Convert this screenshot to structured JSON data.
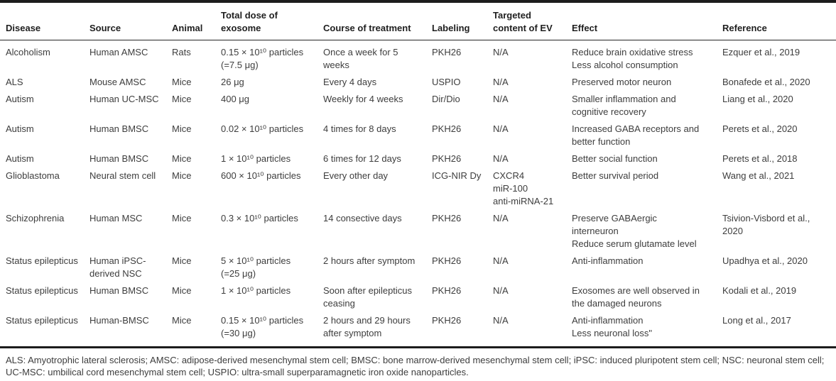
{
  "colors": {
    "background": "#ffffff",
    "body_text": "#3d3d3d",
    "header_text": "#1f1f1f",
    "rule": "#1c1c1c"
  },
  "table": {
    "columns": [
      {
        "key": "disease",
        "label": "Disease"
      },
      {
        "key": "source",
        "label": "Source"
      },
      {
        "key": "animal",
        "label": "Animal"
      },
      {
        "key": "dose",
        "label": "Total dose of\nexosome"
      },
      {
        "key": "course",
        "label": "Course of treatment"
      },
      {
        "key": "labeling",
        "label": "Labeling"
      },
      {
        "key": "targeted_content",
        "label": "Targeted\ncontent of EV"
      },
      {
        "key": "effect",
        "label": "Effect"
      },
      {
        "key": "reference",
        "label": "Reference"
      }
    ],
    "rows": [
      {
        "disease": "Alcoholism",
        "source": "Human AMSC",
        "animal": "Rats",
        "dose": "0.15 × 10¹⁰ particles\n(=7.5 μg)",
        "course": "Once a week for 5\nweeks",
        "labeling": "PKH26",
        "targeted_content": "N/A",
        "effect": "Reduce brain oxidative stress\nLess alcohol consumption",
        "reference": "Ezquer et al., 2019"
      },
      {
        "disease": "ALS",
        "source": "Mouse AMSC",
        "animal": "Mice",
        "dose": "26 μg",
        "course": "Every 4 days",
        "labeling": "USPIO",
        "targeted_content": "N/A",
        "effect": "Preserved motor neuron",
        "reference": "Bonafede et al., 2020"
      },
      {
        "disease": "Autism",
        "source": "Human UC-MSC",
        "animal": "Mice",
        "dose": "400 μg",
        "course": "Weekly for 4 weeks",
        "labeling": "Dir/Dio",
        "targeted_content": "N/A",
        "effect": "Smaller inflammation and\ncognitive recovery",
        "reference": "Liang et al., 2020"
      },
      {
        "disease": "Autism",
        "source": "Human BMSC",
        "animal": "Mice",
        "dose": "0.02 × 10¹⁰ particles",
        "course": "4 times for 8 days",
        "labeling": "PKH26",
        "targeted_content": "N/A",
        "effect": "Increased GABA receptors and\nbetter function",
        "reference": "Perets et al., 2020"
      },
      {
        "disease": "Autism",
        "source": "Human BMSC",
        "animal": "Mice",
        "dose": "1 × 10¹⁰ particles",
        "course": "6 times for 12 days",
        "labeling": "PKH26",
        "targeted_content": "N/A",
        "effect": "Better social function",
        "reference": "Perets et al., 2018"
      },
      {
        "disease": "Glioblastoma",
        "source": "Neural stem cell",
        "animal": "Mice",
        "dose": "600 × 10¹⁰ particles",
        "course": "Every other day",
        "labeling": "ICG-NIR Dy",
        "targeted_content": "CXCR4\nmiR-100\nanti-miRNA-21",
        "effect": "Better survival period",
        "reference": "Wang et al., 2021"
      },
      {
        "disease": "Schizophrenia",
        "source": "Human MSC",
        "animal": "Mice",
        "dose": "0.3 × 10¹⁰ particles",
        "course": "14 consective days",
        "labeling": "PKH26",
        "targeted_content": "N/A",
        "effect": "Preserve GABAergic\ninterneuron\nReduce serum glutamate level",
        "reference": "Tsivion-Visbord et al.,\n2020"
      },
      {
        "disease": "Status epilepticus",
        "source": "Human iPSC-\nderived NSC",
        "animal": "Mice",
        "dose": "5 × 10¹⁰ particles\n(=25 μg)",
        "course": "2 hours after symptom",
        "labeling": "PKH26",
        "targeted_content": "N/A",
        "effect": "Anti-inflammation",
        "reference": "Upadhya et al., 2020"
      },
      {
        "disease": "Status epilepticus",
        "source": "Human BMSC",
        "animal": "Mice",
        "dose": "1 × 10¹⁰ particles",
        "course": "Soon after epilepticus\nceasing",
        "labeling": "PKH26",
        "targeted_content": "N/A",
        "effect": "Exosomes are well observed in\nthe damaged neurons",
        "reference": "Kodali et al., 2019"
      },
      {
        "disease": "Status epilepticus",
        "source": "Human-BMSC",
        "animal": "Mice",
        "dose": "0.15 × 10¹⁰ particles\n(=30 μg)",
        "course": "2 hours and 29 hours\nafter symptom",
        "labeling": "PKH26",
        "targeted_content": "N/A",
        "effect": "Anti-inflammation\nLess neuronal loss\"",
        "reference": "Long et al., 2017"
      }
    ]
  },
  "footnote": {
    "text": "ALS: Amyotrophic lateral sclerosis; AMSC: adipose-derived mesenchymal stem cell; BMSC: bone marrow-derived mesenchymal stem cell; iPSC: induced pluripotent stem cell; NSC: neuronal stem cell; UC-MSC: umbilical cord mesenchymal stem cell; USPIO: ultra-small superparamagnetic iron oxide nanoparticles."
  }
}
